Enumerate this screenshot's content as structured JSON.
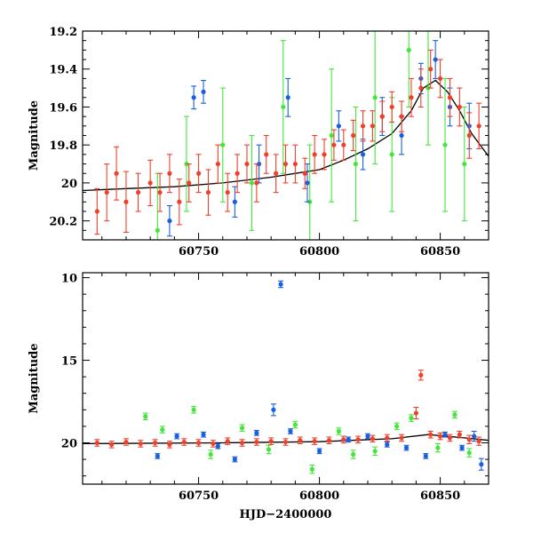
{
  "chart_data": [
    {
      "type": "scatter",
      "title": "",
      "xlabel": "",
      "ylabel": "Magnitude",
      "xlim": [
        60702,
        60870
      ],
      "ylim": [
        20.3,
        19.2
      ],
      "y_inverted": true,
      "xticks": [
        60750,
        60800,
        60850
      ],
      "xtick_labels": [
        "60750",
        "60800",
        "60850"
      ],
      "yticks": [
        19.2,
        19.4,
        19.6,
        19.8,
        20.0,
        20.2
      ],
      "ytick_labels": [
        "19.2",
        "19.4",
        "19.6",
        "19.8",
        "20",
        "20.2"
      ],
      "grid": false,
      "legend": "none",
      "colors": {
        "red": "#f0402a",
        "green": "#44e63c",
        "blue": "#1a5fe0",
        "model": "#000000"
      },
      "model_curve": {
        "x": [
          60702,
          60720,
          60740,
          60760,
          60780,
          60790,
          60800,
          60810,
          60820,
          60830,
          60838,
          60843,
          60848,
          60853,
          60858,
          60863,
          60870
        ],
        "y": [
          20.04,
          20.03,
          20.02,
          20.0,
          19.97,
          19.95,
          19.93,
          19.88,
          19.82,
          19.74,
          19.62,
          19.5,
          19.46,
          19.52,
          19.62,
          19.74,
          19.86
        ]
      },
      "series": [
        {
          "color": "red",
          "x": [
            60708,
            60712,
            60716,
            60720,
            60725,
            60730,
            60734,
            60738,
            60742,
            60746,
            60750,
            60754,
            60758,
            60762,
            60766,
            60770,
            60774,
            60778,
            60782,
            60786,
            60790,
            60794,
            60798,
            60802,
            60806,
            60810,
            60814,
            60818,
            60822,
            60826,
            60830,
            60834,
            60838,
            60842,
            60846,
            60850,
            60854,
            60858,
            60862,
            60866
          ],
          "y": [
            20.15,
            20.05,
            19.95,
            20.1,
            20.05,
            20.0,
            20.05,
            19.95,
            20.1,
            20.0,
            19.95,
            20.05,
            19.9,
            20.05,
            19.95,
            19.9,
            20.0,
            19.85,
            19.95,
            19.9,
            19.9,
            19.95,
            19.85,
            19.85,
            19.8,
            19.8,
            19.75,
            19.7,
            19.7,
            19.65,
            19.6,
            19.65,
            19.55,
            19.5,
            19.4,
            19.45,
            19.55,
            19.6,
            19.75,
            19.7
          ],
          "err": [
            0.12,
            0.15,
            0.14,
            0.16,
            0.1,
            0.12,
            0.1,
            0.1,
            0.12,
            0.1,
            0.1,
            0.12,
            0.1,
            0.1,
            0.1,
            0.1,
            0.1,
            0.1,
            0.1,
            0.1,
            0.1,
            0.08,
            0.1,
            0.08,
            0.08,
            0.08,
            0.08,
            0.08,
            0.08,
            0.08,
            0.08,
            0.08,
            0.1,
            0.1,
            0.1,
            0.1,
            0.1,
            0.1,
            0.12,
            0.12
          ]
        },
        {
          "color": "green",
          "x": [
            60733,
            60745,
            60760,
            60772,
            60785,
            60796,
            60805,
            60815,
            60823,
            60830,
            60837,
            60845,
            60852,
            60860
          ],
          "y": [
            20.25,
            19.9,
            19.8,
            20.0,
            19.6,
            20.1,
            19.75,
            19.9,
            19.55,
            19.85,
            19.3,
            19.5,
            19.8,
            19.9
          ],
          "err": [
            0.3,
            0.25,
            0.3,
            0.25,
            0.35,
            0.3,
            0.35,
            0.3,
            0.35,
            0.3,
            0.3,
            0.3,
            0.35,
            0.3
          ]
        },
        {
          "color": "blue",
          "x": [
            60738,
            60748,
            60752,
            60765,
            60775,
            60787,
            60795,
            60808,
            60818,
            60826,
            60834,
            60842,
            60848,
            60854,
            60862
          ],
          "y": [
            20.2,
            19.55,
            19.52,
            20.1,
            19.9,
            19.55,
            20.0,
            19.7,
            19.85,
            19.65,
            19.75,
            19.45,
            19.35,
            19.6,
            19.7
          ],
          "err": [
            0.08,
            0.06,
            0.06,
            0.08,
            0.1,
            0.1,
            0.1,
            0.08,
            0.08,
            0.1,
            0.1,
            0.08,
            0.1,
            0.1,
            0.12
          ]
        }
      ]
    },
    {
      "type": "scatter",
      "title": "",
      "xlabel": "HJD−2400000",
      "ylabel": "Magnitude",
      "xlim": [
        60702,
        60870
      ],
      "ylim": [
        22.5,
        9.7
      ],
      "y_inverted": true,
      "xticks": [
        60750,
        60800,
        60850
      ],
      "xtick_labels": [
        "60750",
        "60800",
        "60850"
      ],
      "yticks": [
        10,
        15,
        20
      ],
      "ytick_labels": [
        "10",
        "15",
        "20"
      ],
      "grid": false,
      "legend": "none",
      "colors": {
        "red": "#f0402a",
        "green": "#44e63c",
        "blue": "#1a5fe0",
        "model": "#000000"
      },
      "model_curve": {
        "x": [
          60702,
          60760,
          60800,
          60830,
          60845,
          60860,
          60870
        ],
        "y": [
          20.05,
          20.0,
          19.93,
          19.75,
          19.5,
          19.7,
          19.85
        ]
      },
      "series": [
        {
          "color": "red",
          "x": [
            60708,
            60714,
            60720,
            60726,
            60732,
            60738,
            60744,
            60750,
            60756,
            60762,
            60768,
            60774,
            60780,
            60786,
            60792,
            60798,
            60804,
            60810,
            60816,
            60822,
            60828,
            60834,
            60840,
            60842,
            60846,
            60850,
            60854,
            60858,
            60862,
            60866
          ],
          "y": [
            20.0,
            20.1,
            19.95,
            20.05,
            20.0,
            20.1,
            19.95,
            20.0,
            20.05,
            19.9,
            20.0,
            19.95,
            19.9,
            19.95,
            19.85,
            19.9,
            19.85,
            19.8,
            19.8,
            19.75,
            19.7,
            19.7,
            18.2,
            15.9,
            19.5,
            19.6,
            19.7,
            19.5,
            19.8,
            19.9
          ],
          "err": [
            0.2,
            0.2,
            0.2,
            0.2,
            0.2,
            0.2,
            0.2,
            0.2,
            0.2,
            0.2,
            0.2,
            0.2,
            0.2,
            0.2,
            0.2,
            0.2,
            0.2,
            0.2,
            0.2,
            0.2,
            0.2,
            0.2,
            0.35,
            0.3,
            0.2,
            0.2,
            0.2,
            0.2,
            0.25,
            0.25
          ]
        },
        {
          "color": "green",
          "x": [
            60728,
            60735,
            60748,
            60755,
            60768,
            60779,
            60790,
            60797,
            60808,
            60814,
            60823,
            60832,
            60838,
            60849,
            60856,
            60862
          ],
          "y": [
            18.4,
            19.2,
            18.0,
            20.7,
            19.1,
            20.4,
            18.9,
            21.6,
            19.3,
            20.7,
            20.5,
            19.0,
            18.5,
            20.3,
            18.3,
            20.6
          ],
          "err": [
            0.2,
            0.2,
            0.2,
            0.25,
            0.2,
            0.25,
            0.2,
            0.25,
            0.2,
            0.25,
            0.25,
            0.2,
            0.2,
            0.25,
            0.2,
            0.25
          ]
        },
        {
          "color": "blue",
          "x": [
            60733,
            60741,
            60752,
            60758,
            60765,
            60774,
            60781,
            60784,
            60788,
            60800,
            60812,
            60820,
            60828,
            60836,
            60844,
            60852,
            60859,
            60864,
            60867
          ],
          "y": [
            20.8,
            19.6,
            19.5,
            20.2,
            21.0,
            19.4,
            18.0,
            10.4,
            19.3,
            20.5,
            19.8,
            19.6,
            20.1,
            20.3,
            20.8,
            19.5,
            20.3,
            19.6,
            21.3
          ],
          "err": [
            0.15,
            0.15,
            0.15,
            0.15,
            0.15,
            0.15,
            0.35,
            0.2,
            0.15,
            0.15,
            0.15,
            0.15,
            0.15,
            0.15,
            0.15,
            0.15,
            0.15,
            0.3,
            0.35
          ]
        }
      ]
    }
  ]
}
